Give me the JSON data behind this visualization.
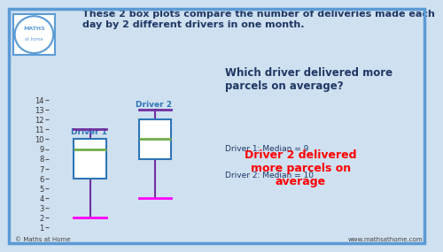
{
  "background_color": "#cfe0f0",
  "border_color": "#5b9bd5",
  "title_text": "These 2 box plots compare the number of deliveries made each\nday by 2 different drivers in one month.",
  "title_color": "#1f3864",
  "title_fontsize": 8.0,
  "ylim": [
    0.5,
    14.5
  ],
  "yticks": [
    1,
    2,
    3,
    4,
    5,
    6,
    7,
    8,
    9,
    10,
    11,
    12,
    13,
    14
  ],
  "driver1": {
    "label": "Driver 1",
    "label_color": "#2e75b6",
    "label_fontsize": 6.5,
    "x": 1.0,
    "min": 2,
    "q1": 6,
    "median": 9,
    "q3": 10,
    "max": 11,
    "box_color": "#2e75b6",
    "median_color": "#70ad47",
    "whisker_color": "#7030a0",
    "min_color": "#ff00ff",
    "max_color": "#7030a0",
    "box_width": 0.55
  },
  "driver2": {
    "label": "Driver 2",
    "label_color": "#2e75b6",
    "label_fontsize": 6.5,
    "x": 2.1,
    "min": 4,
    "q1": 8,
    "median": 10,
    "q3": 12,
    "max": 13,
    "box_color": "#2e75b6",
    "median_color": "#70ad47",
    "whisker_color": "#7030a0",
    "min_color": "#ff00ff",
    "max_color": "#7030a0",
    "box_width": 0.55
  },
  "question_text": "Which driver delivered more\nparcels on average?",
  "question_color": "#1f3864",
  "question_fontsize": 8.5,
  "answer_text1": "Driver 1: Median = 9",
  "answer_text2": "Driver 2: Median = 10",
  "answer_color": "#1f3864",
  "answer_fontsize": 6.5,
  "highlight_text": "Driver 2 delivered\nmore parcels on\naverage",
  "highlight_color": "#ff0000",
  "highlight_fontsize": 9.0,
  "logo_text": "© Maths at Home",
  "website_text": "www.mathsathome.com",
  "footer_fontsize": 5.0
}
